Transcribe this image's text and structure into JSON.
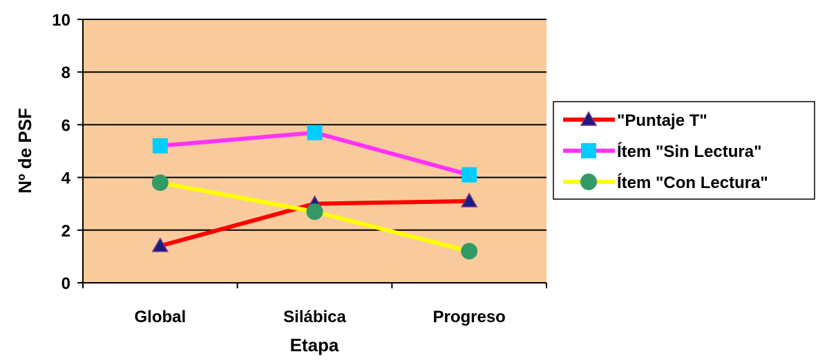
{
  "chart_data": {
    "type": "line",
    "categories": [
      "Global",
      "Silábica",
      "Progreso"
    ],
    "xlabel": "Etapa",
    "ylabel": "Nº de PSF",
    "ylim": [
      0,
      10
    ],
    "yticks": [
      0,
      2,
      4,
      6,
      8,
      10
    ],
    "grid": true,
    "plot_background": "#F9CB9C",
    "legend_position": "right",
    "series": [
      {
        "name": "\"Puntaje T\"",
        "values": [
          1.4,
          3.0,
          3.1
        ],
        "color": "#FF0000",
        "marker": "triangle",
        "marker_color": "#1F1A80"
      },
      {
        "name": "Ítem \"Sin Lectura\"",
        "values": [
          5.2,
          5.7,
          4.1
        ],
        "color": "#FF33FF",
        "marker": "square",
        "marker_color": "#00CCFF"
      },
      {
        "name": "Ítem \"Con Lectura\"",
        "values": [
          3.8,
          2.7,
          1.2
        ],
        "color": "#FFFF00",
        "marker": "circle",
        "marker_color": "#339966"
      }
    ]
  }
}
